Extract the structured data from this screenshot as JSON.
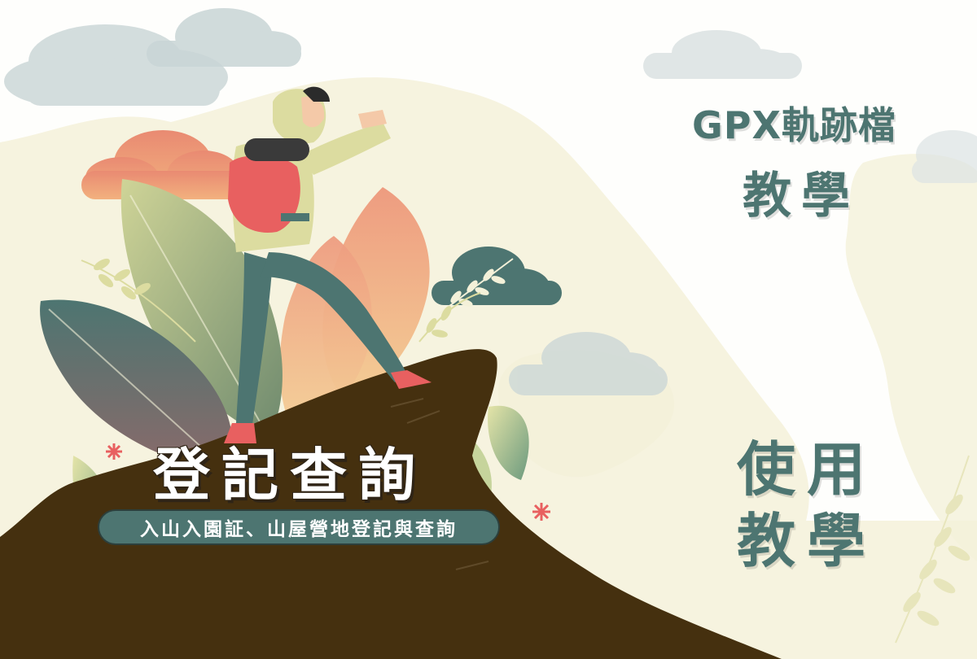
{
  "banner_left": {
    "title": "登記查詢",
    "subtitle": "入山入園証、山屋營地登記與查詢"
  },
  "banner_right_top": {
    "title": "GPX軌跡檔",
    "subtitle": "教學"
  },
  "banner_right_bottom": {
    "line1": "使用",
    "line2": "教學"
  },
  "colors": {
    "teal": "#4d7571",
    "mountain_brown": "#45300f",
    "hiker_jacket": "#dcdca0",
    "backpack": "#e86060",
    "cloud_gray": "#c8d4d4",
    "cream_bg": "#f3f1dc"
  },
  "illustration": {
    "subject": "hiker-on-mountain-peak"
  }
}
